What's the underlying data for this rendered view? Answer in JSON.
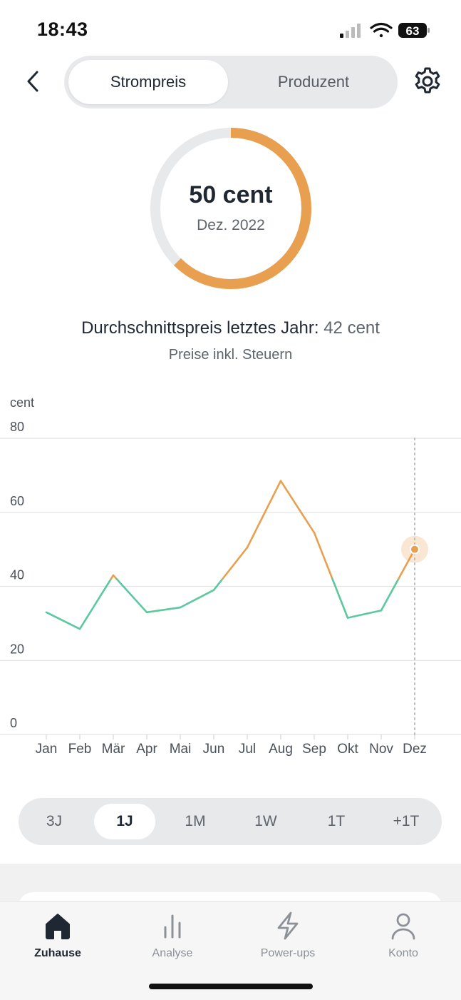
{
  "status_bar": {
    "time": "18:43",
    "battery": "63"
  },
  "header": {
    "segments": [
      {
        "label": "Strompreis",
        "active": true
      },
      {
        "label": "Produzent",
        "active": false
      }
    ]
  },
  "donut": {
    "value": "50 cent",
    "date": "Dez. 2022",
    "fill_fraction": 0.625,
    "color": "#e8a050",
    "track_color": "#e8e9eb"
  },
  "summary": {
    "avg_label": "Durchschnittspreis letztes Jahr:",
    "avg_value": "42 cent",
    "tax_note": "Preise inkl. Steuern"
  },
  "chart_data": {
    "type": "line",
    "ylabel": "cent",
    "ylim": [
      0,
      80
    ],
    "yticks": [
      "0",
      "20",
      "40",
      "60",
      "80"
    ],
    "categories": [
      "Jan",
      "Feb",
      "Mär",
      "Apr",
      "Mai",
      "Jun",
      "Jul",
      "Aug",
      "Sep",
      "Okt",
      "Nov",
      "Dez"
    ],
    "values": [
      33,
      28.5,
      43,
      33,
      34.3,
      39,
      50.5,
      68.5,
      54.5,
      31.5,
      33.5,
      50
    ],
    "threshold": 42,
    "below_color": "#5cc8a0",
    "above_color": "#e8a050",
    "highlight_index": 11,
    "grid": true
  },
  "range_selector": {
    "items": [
      {
        "label": "3J",
        "active": false
      },
      {
        "label": "1J",
        "active": true
      },
      {
        "label": "1M",
        "active": false
      },
      {
        "label": "1W",
        "active": false
      },
      {
        "label": "1T",
        "active": false
      },
      {
        "label": "+1T",
        "active": false
      }
    ]
  },
  "tabbar": {
    "items": [
      {
        "label": "Zuhause",
        "icon": "home-icon",
        "active": true
      },
      {
        "label": "Analyse",
        "icon": "bar-chart-icon",
        "active": false
      },
      {
        "label": "Power-ups",
        "icon": "lightning-icon",
        "active": false
      },
      {
        "label": "Konto",
        "icon": "user-icon",
        "active": false
      }
    ]
  }
}
